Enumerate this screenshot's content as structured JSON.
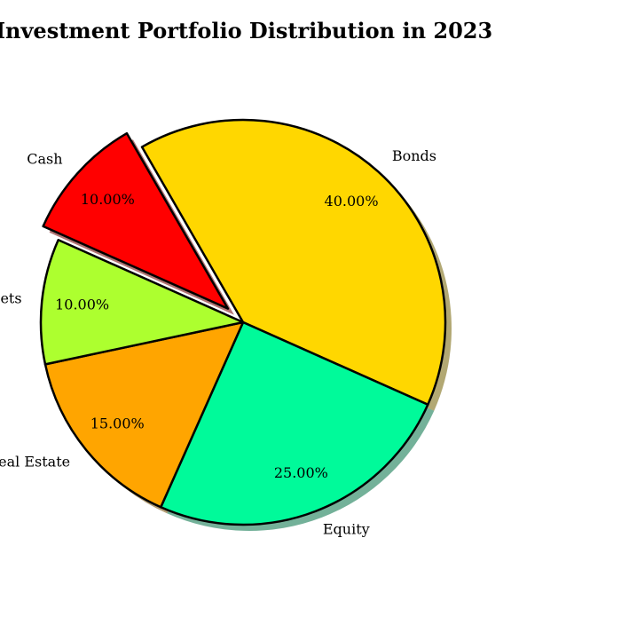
{
  "chart_data": {
    "type": "pie",
    "title": "Investment Portfolio Distribution in 2023",
    "categories": [
      "Bonds",
      "Equity",
      "Real Estate",
      "Alternative Assets",
      "Cash"
    ],
    "values": [
      40,
      25,
      15,
      10,
      10
    ],
    "value_labels": [
      "40.00%",
      "25.00%",
      "15.00%",
      "10.00%",
      "10.00%"
    ],
    "colors": [
      "#FFD700",
      "#00FA9A",
      "#FFA500",
      "#ADFF2F",
      "#FF0000"
    ],
    "start_angle_deg": 120,
    "direction": "clockwise",
    "exploded": [
      "Cash"
    ],
    "shadow": true,
    "edge_color": "#000000",
    "legend": "none"
  }
}
